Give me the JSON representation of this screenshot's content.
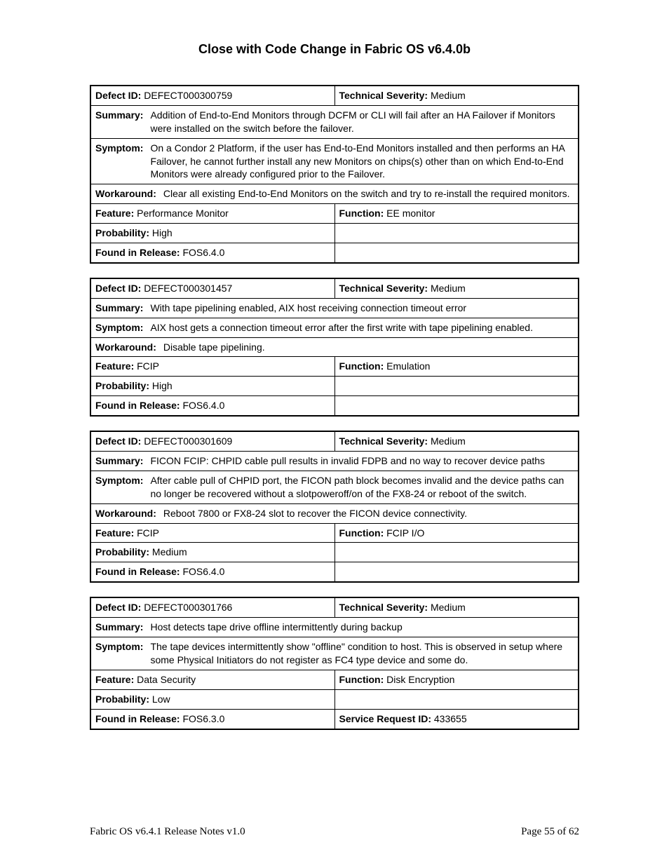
{
  "page": {
    "title": "Close with Code Change in Fabric OS v6.4.0b",
    "footer_left": "Fabric OS v6.4.1 Release Notes v1.0",
    "footer_right": "Page 55 of 62"
  },
  "labels": {
    "defect_id": "Defect ID:",
    "technical_severity": "Technical Severity:",
    "summary": "Summary:",
    "symptom": "Symptom:",
    "workaround": "Workaround:",
    "feature": "Feature:",
    "function": "Function:",
    "probability": "Probability:",
    "found_in_release": "Found in Release:",
    "service_request_id": "Service Request ID:"
  },
  "defects": [
    {
      "id": "DEFECT000300759",
      "severity": "Medium",
      "summary": "Addition of End-to-End Monitors through DCFM or CLI will fail after an HA Failover if Monitors were installed on the switch before the failover.",
      "symptom": "On a Condor 2 Platform, if the user has End-to-End Monitors installed and then performs an HA Failover, he cannot further install any new Monitors on chips(s) other than on which End-to-End Monitors were already configured prior to the Failover.",
      "workaround": "Clear all existing End-to-End Monitors on the switch and try to re-install the required monitors.",
      "feature": "Performance Monitor",
      "function": "EE monitor",
      "probability": "High",
      "found_in_release": "FOS6.4.0",
      "service_request_id": ""
    },
    {
      "id": "DEFECT000301457",
      "severity": "Medium",
      "summary": "With tape pipelining enabled, AIX host receiving connection timeout error",
      "symptom": "AIX host gets a connection timeout error after the first write with tape pipelining enabled.",
      "workaround": "Disable tape pipelining.",
      "feature": "FCIP",
      "function": "Emulation",
      "probability": "High",
      "found_in_release": "FOS6.4.0",
      "service_request_id": ""
    },
    {
      "id": "DEFECT000301609",
      "severity": "Medium",
      "summary": "FICON FCIP: CHPID cable pull results in invalid FDPB and no way to recover device paths",
      "symptom": "After cable pull of CHPID port, the FICON path block becomes invalid and the device paths can no longer be recovered without a slotpoweroff/on of the FX8-24 or reboot of the switch.",
      "workaround": "Reboot 7800 or FX8-24 slot to recover the FICON device connectivity.",
      "feature": "FCIP",
      "function": "FCIP I/O",
      "probability": "Medium",
      "found_in_release": "FOS6.4.0",
      "service_request_id": ""
    },
    {
      "id": "DEFECT000301766",
      "severity": "Medium",
      "summary": "Host detects tape drive offline intermittently during backup",
      "symptom": "The tape devices intermittently show \"offline\" condition to host. This is observed in setup where some Physical Initiators do not register as FC4 type device and some do.",
      "workaround": "",
      "feature": "Data Security",
      "function": "Disk Encryption",
      "probability": "Low",
      "found_in_release": "FOS6.3.0",
      "service_request_id": "433655"
    }
  ]
}
